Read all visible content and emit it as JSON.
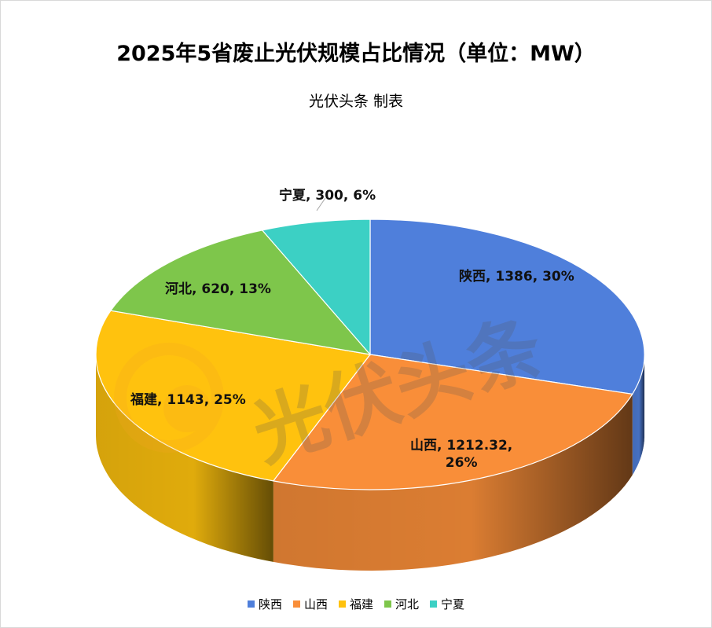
{
  "chart_data": {
    "type": "pie",
    "title": "2025年5省废止光伏规模占比情况（单位：MW）",
    "subtitle": "光伏头条 制表",
    "watermark": "光伏头条",
    "slices": [
      {
        "name": "陕西",
        "value": 1386,
        "percent": "30%",
        "color": "#4f7fdb",
        "label": "陕西, 1386, 30%"
      },
      {
        "name": "山西",
        "value": 1212.32,
        "percent": "26%",
        "color": "#f98e39",
        "label_line1": "山西, 1212.32,",
        "label_line2": "26%"
      },
      {
        "name": "福建",
        "value": 1143,
        "percent": "25%",
        "color": "#ffc20e",
        "label": "福建, 1143, 25%"
      },
      {
        "name": "河北",
        "value": 620,
        "percent": "13%",
        "color": "#7ec64b",
        "label": "河北, 620, 13%"
      },
      {
        "name": "宁夏",
        "value": 300,
        "percent": "6%",
        "color": "#3cd0c4",
        "label": "宁夏, 300, 6%"
      }
    ],
    "legend": [
      "陕西",
      "山西",
      "福建",
      "河北",
      "宁夏"
    ],
    "legend_position": "bottom"
  }
}
